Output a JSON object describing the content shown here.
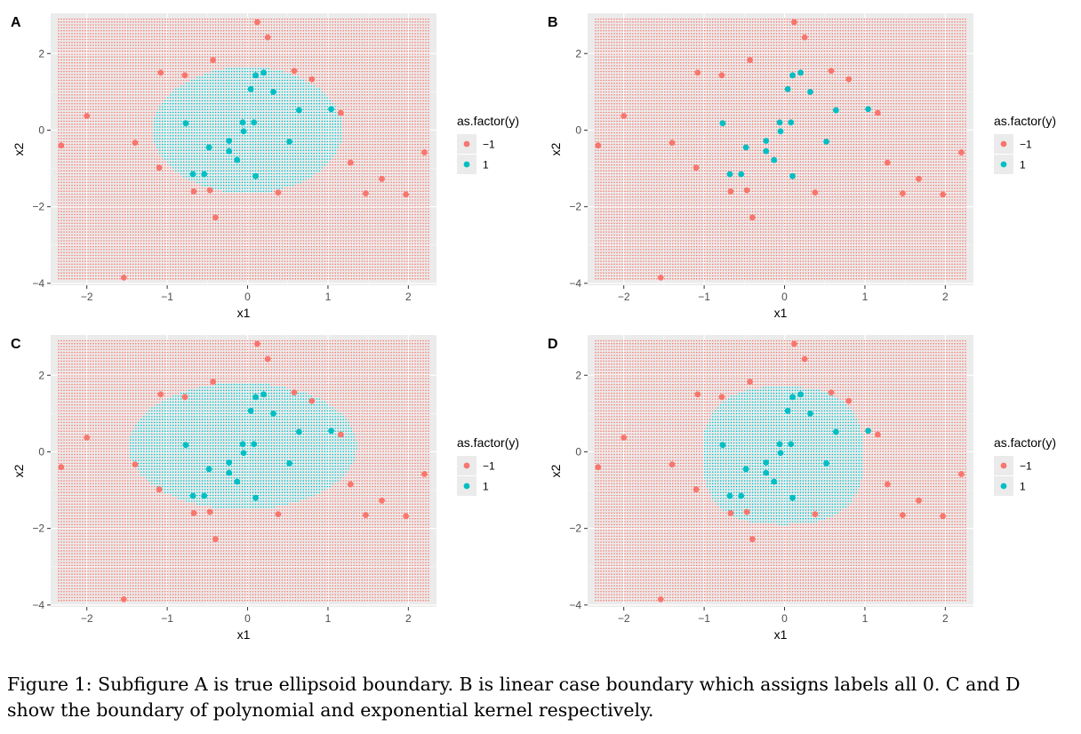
{
  "colors": {
    "neg": "#F8766D",
    "pos": "#00BFC4",
    "panel_bg": "#EBEBEB",
    "grid_major": "#FFFFFF",
    "grid_minor": "#F5F5F5"
  },
  "points": [
    {
      "x": 0.12,
      "y": 2.82,
      "label": "-1"
    },
    {
      "x": 0.25,
      "y": 2.42,
      "label": "-1"
    },
    {
      "x": -0.43,
      "y": 1.83,
      "label": "-1"
    },
    {
      "x": 0.58,
      "y": 1.55,
      "label": "-1"
    },
    {
      "x": -1.08,
      "y": 1.5,
      "label": "-1"
    },
    {
      "x": -0.78,
      "y": 1.43,
      "label": "-1"
    },
    {
      "x": 0.8,
      "y": 1.33,
      "label": "-1"
    },
    {
      "x": 1.16,
      "y": 0.45,
      "label": "-1"
    },
    {
      "x": -2.0,
      "y": 0.37,
      "label": "-1"
    },
    {
      "x": -2.32,
      "y": -0.4,
      "label": "-1"
    },
    {
      "x": -1.4,
      "y": -0.33,
      "label": "-1"
    },
    {
      "x": 2.2,
      "y": -0.58,
      "label": "-1"
    },
    {
      "x": 1.28,
      "y": -0.85,
      "label": "-1"
    },
    {
      "x": -1.1,
      "y": -0.98,
      "label": "-1"
    },
    {
      "x": 1.67,
      "y": -1.27,
      "label": "-1"
    },
    {
      "x": -0.67,
      "y": -1.6,
      "label": "-1"
    },
    {
      "x": -0.47,
      "y": -1.57,
      "label": "-1"
    },
    {
      "x": 0.38,
      "y": -1.63,
      "label": "-1"
    },
    {
      "x": 1.47,
      "y": -1.65,
      "label": "-1"
    },
    {
      "x": 1.97,
      "y": -1.68,
      "label": "-1"
    },
    {
      "x": -0.4,
      "y": -2.28,
      "label": "-1"
    },
    {
      "x": -1.54,
      "y": -3.85,
      "label": "-1"
    },
    {
      "x": 0.1,
      "y": 1.43,
      "label": "1"
    },
    {
      "x": 0.2,
      "y": 1.5,
      "label": "1"
    },
    {
      "x": 0.04,
      "y": 1.07,
      "label": "1"
    },
    {
      "x": 0.32,
      "y": 1.0,
      "label": "1"
    },
    {
      "x": 0.64,
      "y": 0.52,
      "label": "1"
    },
    {
      "x": 1.04,
      "y": 0.55,
      "label": "1"
    },
    {
      "x": -0.77,
      "y": 0.18,
      "label": "1"
    },
    {
      "x": -0.06,
      "y": 0.2,
      "label": "1"
    },
    {
      "x": 0.08,
      "y": 0.2,
      "label": "1"
    },
    {
      "x": -0.05,
      "y": -0.03,
      "label": "1"
    },
    {
      "x": -0.23,
      "y": -0.28,
      "label": "1"
    },
    {
      "x": 0.52,
      "y": -0.3,
      "label": "1"
    },
    {
      "x": -0.48,
      "y": -0.45,
      "label": "1"
    },
    {
      "x": -0.23,
      "y": -0.55,
      "label": "1"
    },
    {
      "x": -0.13,
      "y": -0.78,
      "label": "1"
    },
    {
      "x": -0.68,
      "y": -1.15,
      "label": "1"
    },
    {
      "x": -0.54,
      "y": -1.15,
      "label": "1"
    },
    {
      "x": 0.1,
      "y": -1.2,
      "label": "1"
    }
  ],
  "chart_data": [
    {
      "panel": "A",
      "type": "scatter",
      "title": "",
      "xlabel": "x1",
      "ylabel": "x2",
      "xlim": [
        -2.45,
        2.35
      ],
      "ylim": [
        -4.05,
        3.05
      ],
      "xticks": [
        -2,
        -1,
        0,
        1,
        2
      ],
      "yticks": [
        -4,
        -2,
        0,
        2
      ],
      "xtick_labels": [
        "−2",
        "−1",
        "0",
        "1",
        "2"
      ],
      "ytick_labels": [
        "−4",
        "−2",
        "0",
        "2"
      ],
      "legend": {
        "title": "as.factor(y)",
        "entries": [
          "−1",
          "1"
        ],
        "position": "right"
      },
      "grid_range": {
        "x": [
          -2.35,
          2.25
        ],
        "y": [
          -3.88,
          2.9
        ]
      },
      "boundary": {
        "kind": "ellipse",
        "center": [
          0.0,
          0.0
        ],
        "radius": [
          1.18,
          1.65
        ]
      }
    },
    {
      "panel": "B",
      "type": "scatter",
      "title": "",
      "xlabel": "x1",
      "ylabel": "x2",
      "xlim": [
        -2.45,
        2.35
      ],
      "ylim": [
        -4.05,
        3.05
      ],
      "xticks": [
        -2,
        -1,
        0,
        1,
        2
      ],
      "yticks": [
        -4,
        -2,
        0,
        2
      ],
      "xtick_labels": [
        "−2",
        "−1",
        "0",
        "1",
        "2"
      ],
      "ytick_labels": [
        "−4",
        "−2",
        "0",
        "2"
      ],
      "legend": {
        "title": "as.factor(y)",
        "entries": [
          "−1",
          "1"
        ],
        "position": "right"
      },
      "grid_range": {
        "x": [
          -2.35,
          2.25
        ],
        "y": [
          -3.88,
          2.9
        ]
      },
      "boundary": {
        "kind": "none"
      }
    },
    {
      "panel": "C",
      "type": "scatter",
      "title": "",
      "xlabel": "x1",
      "ylabel": "x2",
      "xlim": [
        -2.45,
        2.35
      ],
      "ylim": [
        -4.05,
        3.05
      ],
      "xticks": [
        -2,
        -1,
        0,
        1,
        2
      ],
      "yticks": [
        -4,
        -2,
        0,
        2
      ],
      "xtick_labels": [
        "−2",
        "−1",
        "0",
        "1",
        "2"
      ],
      "ytick_labels": [
        "−4",
        "−2",
        "0",
        "2"
      ],
      "legend": {
        "title": "as.factor(y)",
        "entries": [
          "−1",
          "1"
        ],
        "position": "right"
      },
      "grid_range": {
        "x": [
          -2.35,
          2.25
        ],
        "y": [
          -3.88,
          2.9
        ]
      },
      "boundary": {
        "kind": "ellipse",
        "center": [
          -0.06,
          0.15
        ],
        "radius": [
          1.42,
          1.66
        ]
      }
    },
    {
      "panel": "D",
      "type": "scatter",
      "title": "",
      "xlabel": "x1",
      "ylabel": "x2",
      "xlim": [
        -2.45,
        2.35
      ],
      "ylim": [
        -4.05,
        3.05
      ],
      "xticks": [
        -2,
        -1,
        0,
        1,
        2
      ],
      "yticks": [
        -4,
        -2,
        0,
        2
      ],
      "xtick_labels": [
        "−2",
        "−1",
        "0",
        "1",
        "2"
      ],
      "ytick_labels": [
        "−4",
        "−2",
        "0",
        "2"
      ],
      "legend": {
        "title": "as.factor(y)",
        "entries": [
          "−1",
          "1"
        ],
        "position": "right"
      },
      "grid_range": {
        "x": [
          -2.35,
          2.25
        ],
        "y": [
          -3.88,
          2.9
        ]
      },
      "boundary": {
        "kind": "superellipse",
        "center": [
          -0.02,
          -0.1
        ],
        "radius": [
          1.0,
          1.8
        ],
        "exponent": 2.6
      }
    }
  ],
  "caption": "Figure 1: Subfigure A is true ellipsoid boundary. B is linear case boundary which assigns labels all 0. C and D show the boundary of polynomial and exponential kernel respectively."
}
